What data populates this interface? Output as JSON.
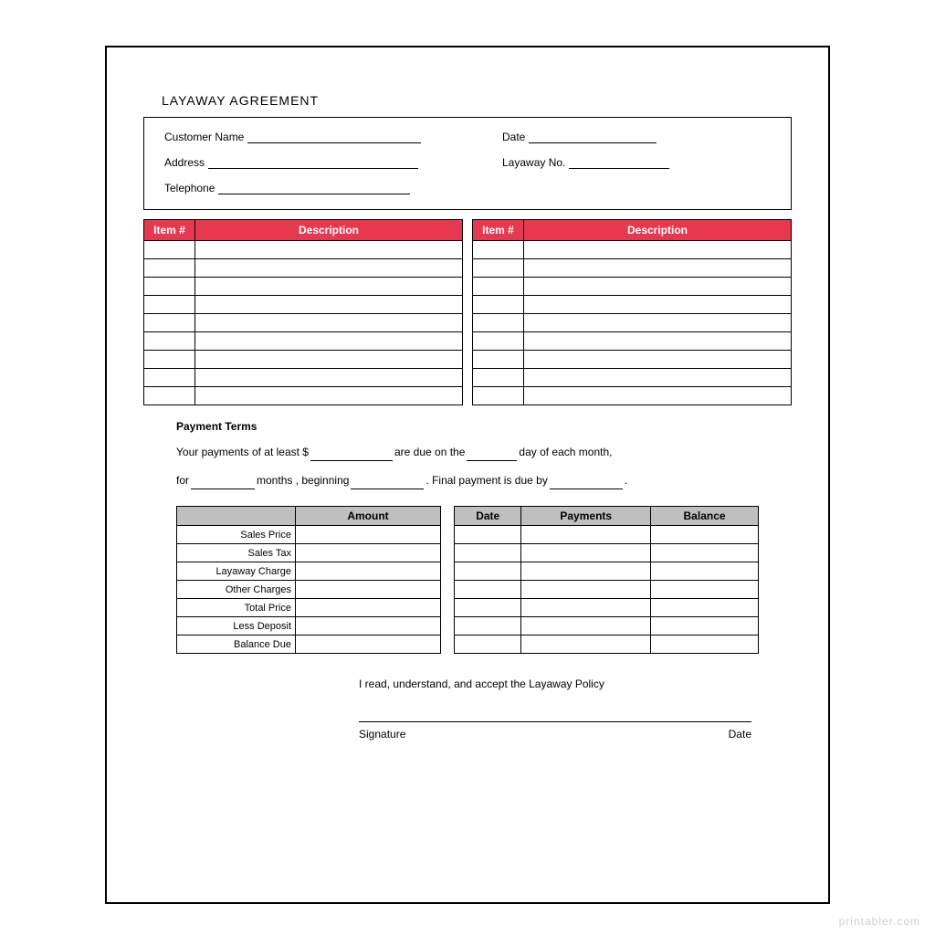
{
  "title": "LAYAWAY AGREEMENT",
  "info": {
    "customer_label": "Customer Name",
    "date_label": "Date",
    "address_label": "Address",
    "layaway_label": "Layaway No.",
    "telephone_label": "Telephone"
  },
  "items": {
    "header_item": "Item #",
    "header_desc": "Description",
    "row_count": 9,
    "header_bg": "#e63950",
    "header_text_color": "#ffffff"
  },
  "payment": {
    "section_title": "Payment Terms",
    "line1_a": "Your payments of at least $",
    "line1_b": "are due on the",
    "line1_c": "day of each month,",
    "line2_a": "for",
    "line2_b": "months , beginning",
    "line2_c": ".  Final payment is due by",
    "line2_d": "."
  },
  "amounts": {
    "header_amount": "Amount",
    "rows": [
      "Sales Price",
      "Sales Tax",
      "Layaway Charge",
      "Other Charges",
      "Total Price",
      "Less Deposit",
      "Balance Due"
    ],
    "header_bg": "#bfbfbf"
  },
  "ledger": {
    "header_date": "Date",
    "header_payments": "Payments",
    "header_balance": "Balance",
    "row_count": 7
  },
  "accept_text": "I read, understand, and accept the Layaway Policy",
  "signature_label": "Signature",
  "sig_date_label": "Date",
  "watermark": "printabler.com",
  "colors": {
    "border": "#000000",
    "background": "#ffffff",
    "watermark": "#cfcfcf"
  }
}
